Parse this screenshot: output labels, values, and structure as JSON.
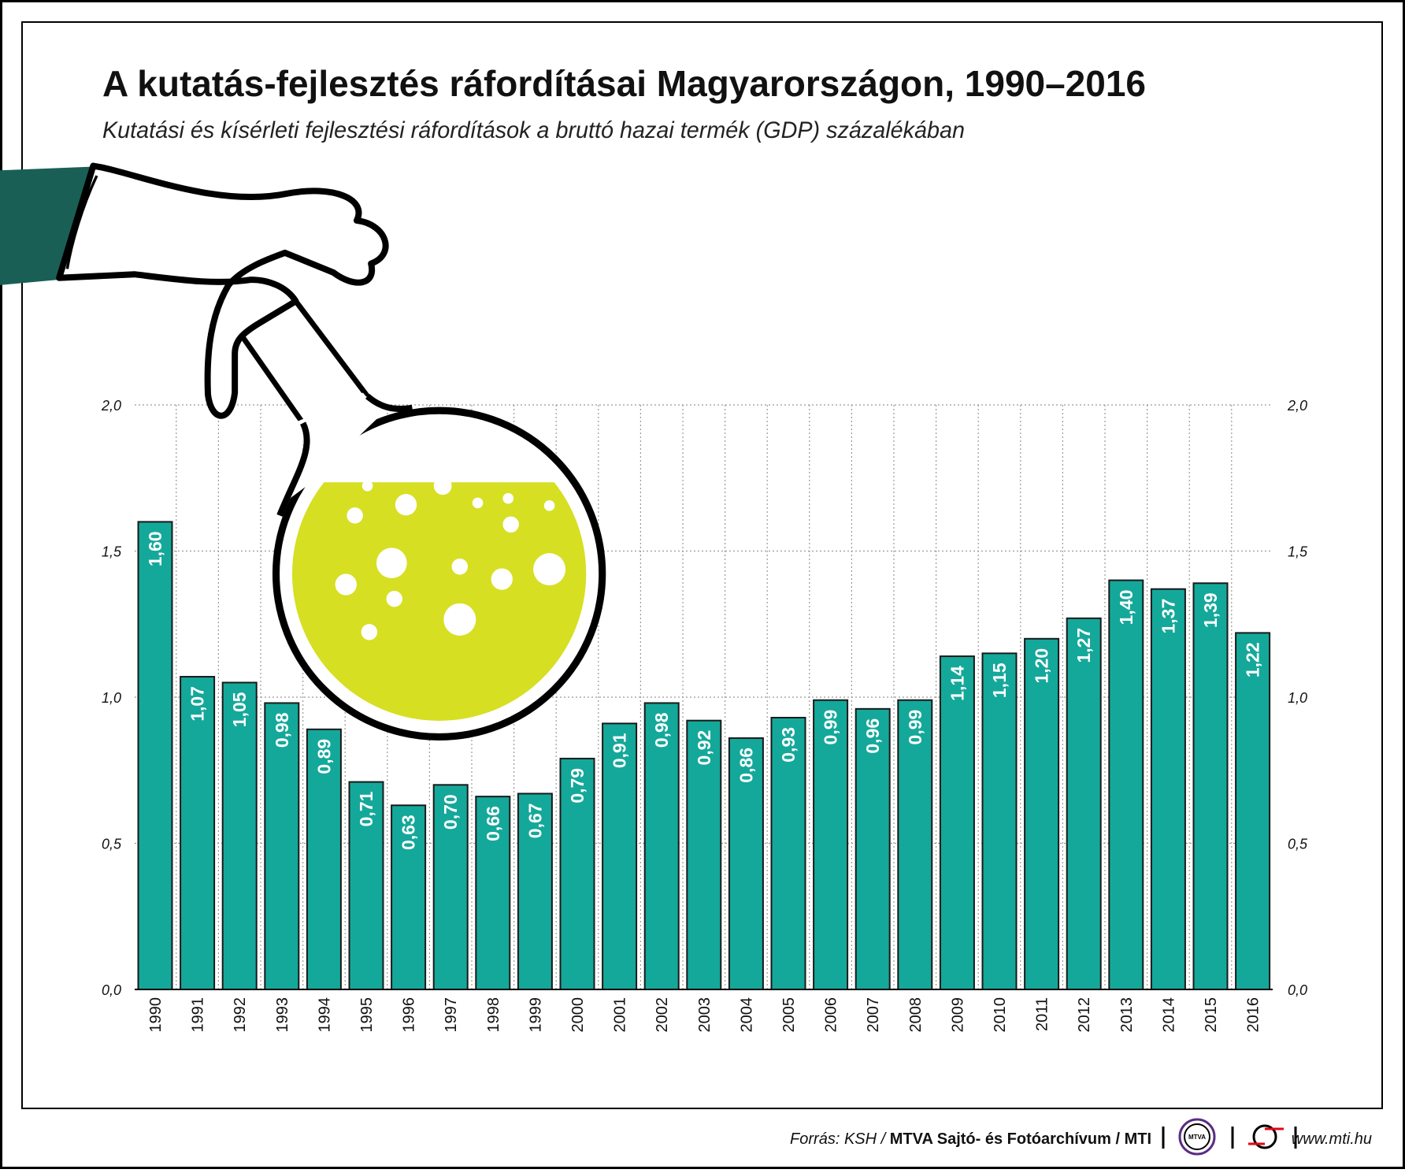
{
  "chart_data": {
    "type": "bar",
    "title": "A kutatás-fejlesztés ráfordításai Magyarországon, 1990–2016",
    "subtitle": "Kutatási és kísérleti fejlesztési ráfordítások a bruttó hazai termék (GDP) százalékában",
    "xlabel": "",
    "ylabel": "",
    "ylim": [
      0,
      2.0
    ],
    "yticks": [
      "0,0",
      "0,5",
      "1,0",
      "1,5",
      "2,0"
    ],
    "grid": true,
    "categories": [
      "1990",
      "1991",
      "1992",
      "1993",
      "1994",
      "1995",
      "1996",
      "1997",
      "1998",
      "1999",
      "2000",
      "2001",
      "2002",
      "2003",
      "2004",
      "2005",
      "2006",
      "2007",
      "2008",
      "2009",
      "2010",
      "2011",
      "2012",
      "2013",
      "2014",
      "2015",
      "2016"
    ],
    "values": [
      1.6,
      1.07,
      1.05,
      0.98,
      0.89,
      0.71,
      0.63,
      0.7,
      0.66,
      0.67,
      0.79,
      0.91,
      0.98,
      0.92,
      0.86,
      0.93,
      0.99,
      0.96,
      0.99,
      1.14,
      1.15,
      1.2,
      1.27,
      1.4,
      1.37,
      1.39,
      1.22
    ],
    "data_labels": [
      "1,60",
      "1,07",
      "1,05",
      "0,98",
      "0,89",
      "0,71",
      "0,63",
      "0,70",
      "0,66",
      "0,67",
      "0,79",
      "0,91",
      "0,98",
      "0,92",
      "0,86",
      "0,93",
      "0,99",
      "0,96",
      "0,99",
      "1,14",
      "1,15",
      "1,20",
      "1,27",
      "1,40",
      "1,37",
      "1,39",
      "1,22"
    ],
    "colors": {
      "bar": "#14a89a",
      "liquid": "#d6df22",
      "sleeve": "#1a5f55"
    }
  },
  "footer": {
    "source_prefix": "Forrás: KSH / ",
    "source_bold": "MTVA Sajtó- és Fotóarchívum / MTI",
    "logo_mtva": "MTVA",
    "url": "www.mti.hu"
  }
}
